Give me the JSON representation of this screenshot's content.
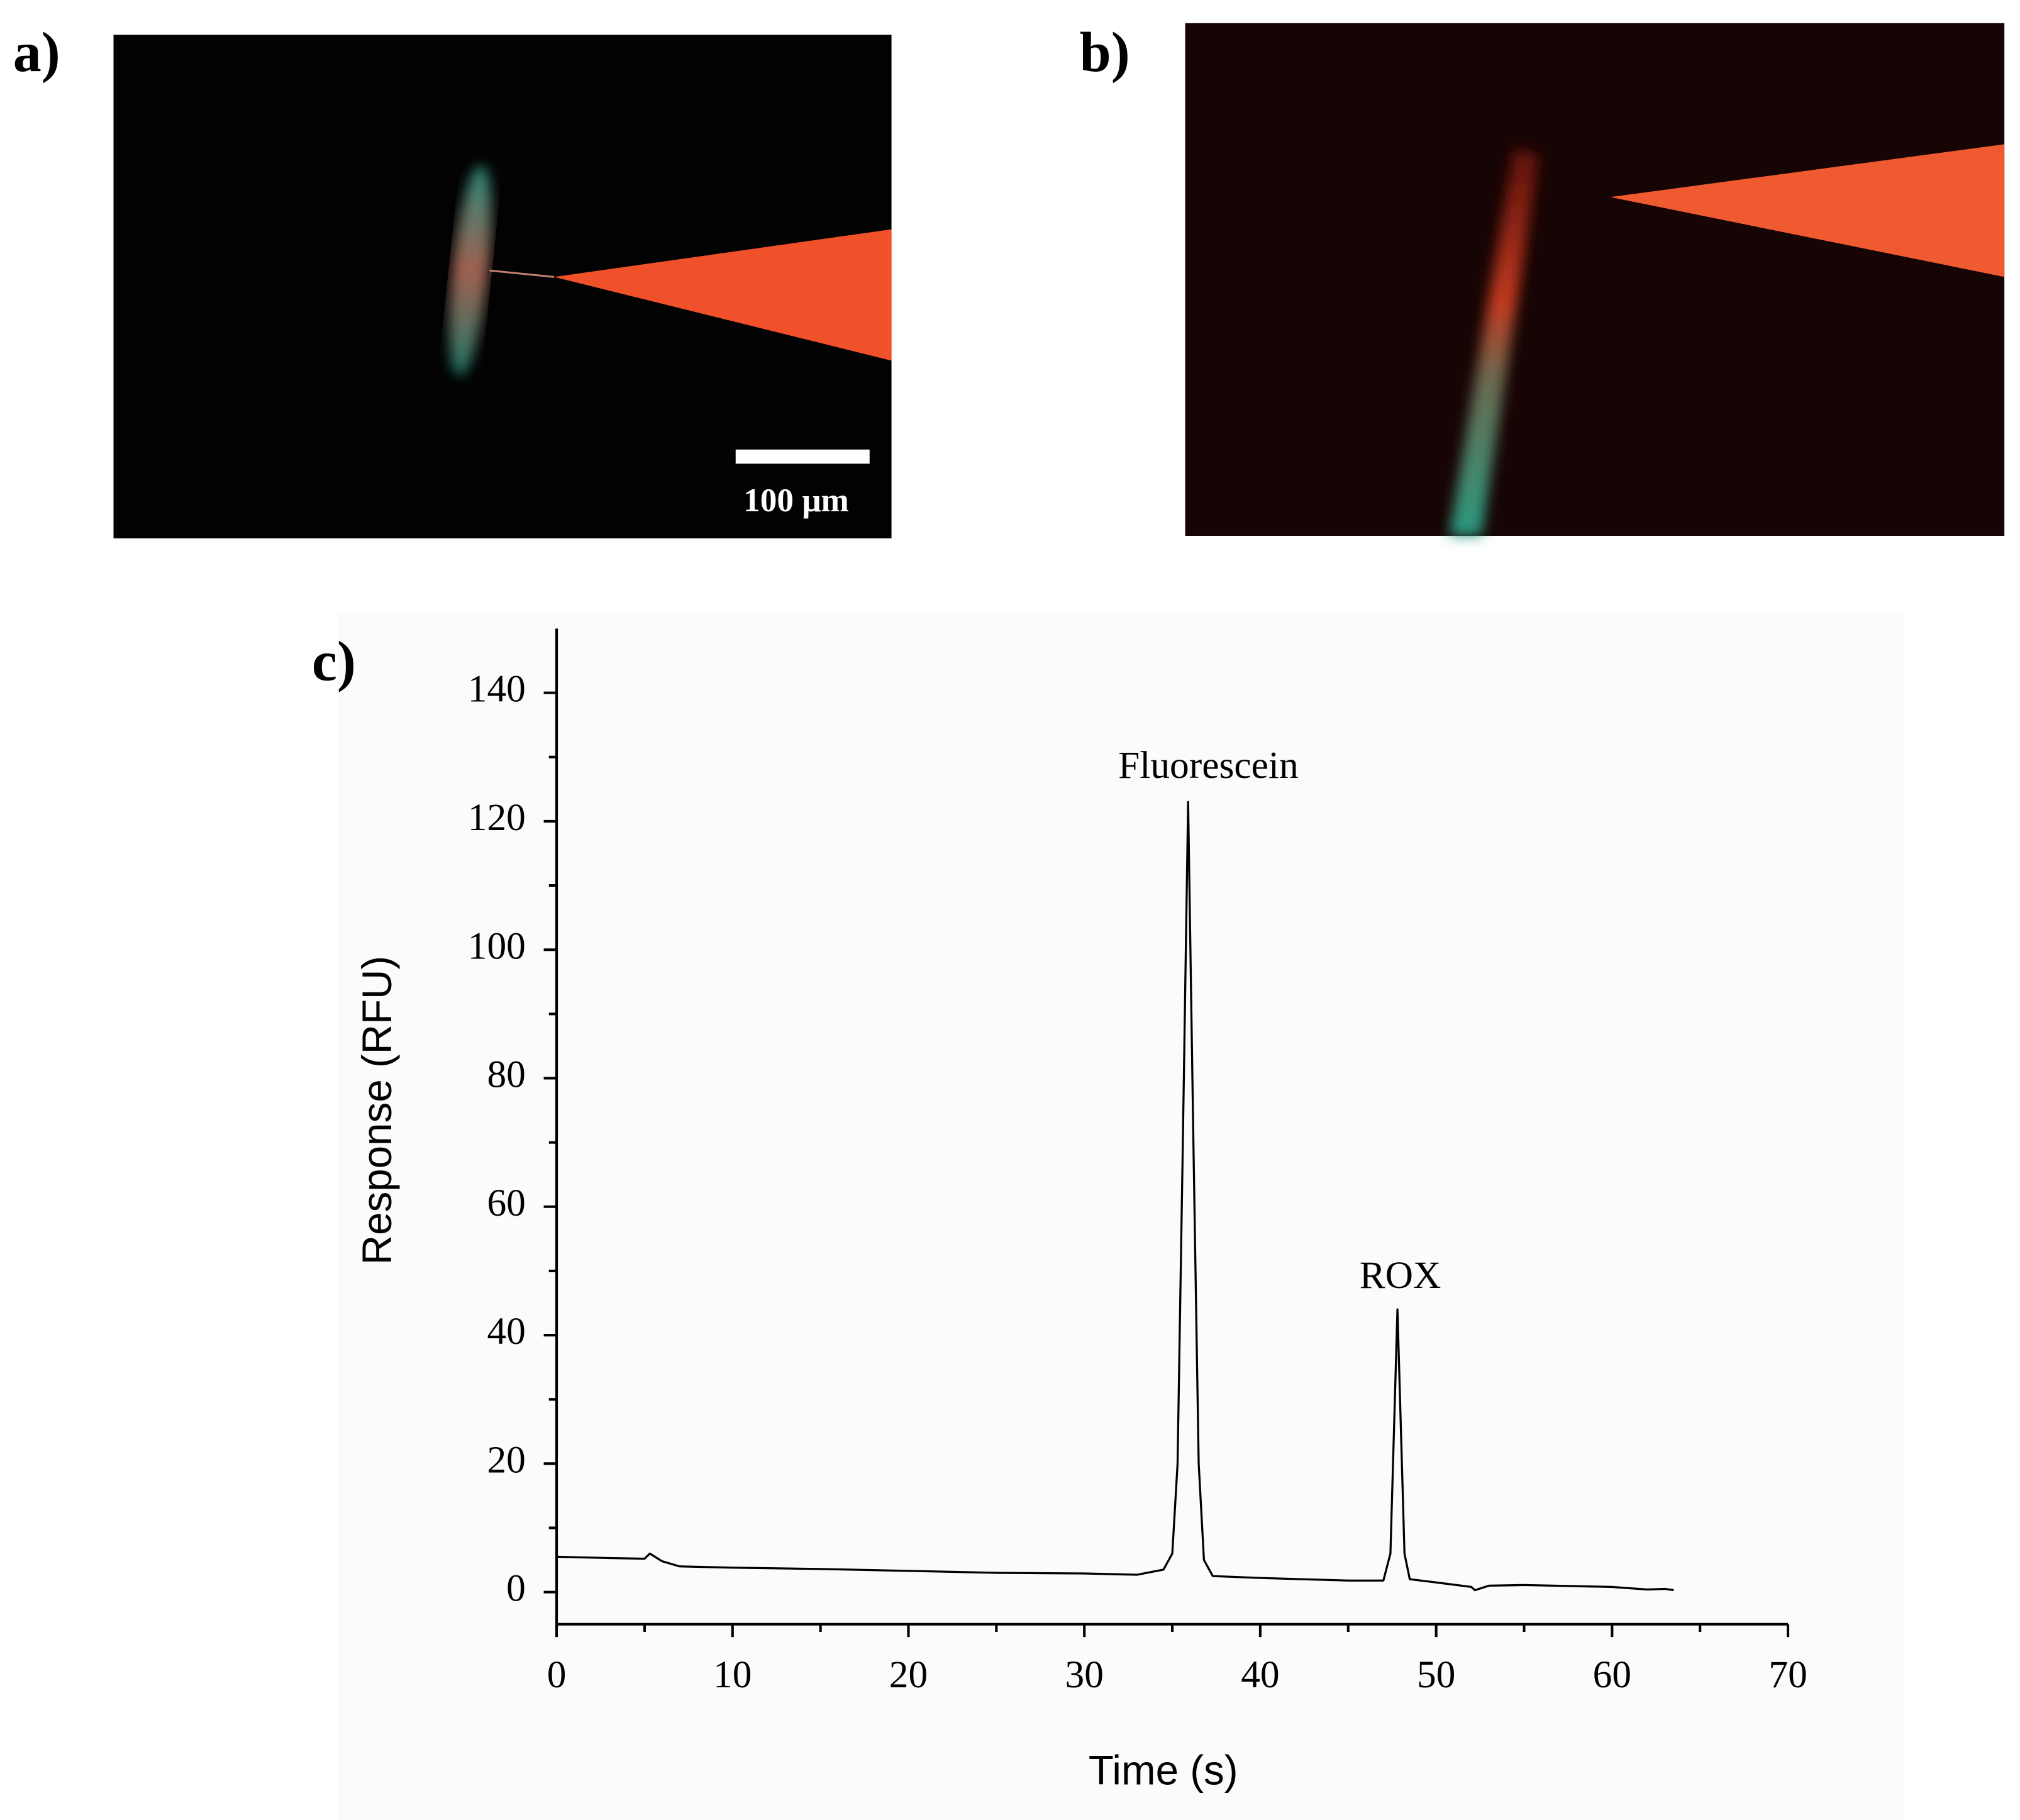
{
  "panels": {
    "a": {
      "label": "a)",
      "scale_bar": "100 μm"
    },
    "b": {
      "label": "b)"
    }
  },
  "chart_data": {
    "type": "line",
    "panel_label": "c)",
    "xlabel": "Time (s)",
    "ylabel": "Response (RFU)",
    "x": [
      0,
      3,
      5,
      5.3,
      6,
      7,
      10,
      15,
      20,
      25,
      30,
      33,
      34.5,
      35,
      35.3,
      35.6,
      35.9,
      36.2,
      36.5,
      36.8,
      37.3,
      40,
      45,
      47,
      47.4,
      47.6,
      47.8,
      48,
      48.2,
      48.5,
      50,
      52,
      52.2,
      53,
      55,
      60,
      62,
      63,
      63.5
    ],
    "values": [
      5.5,
      5.3,
      5.2,
      6,
      4.8,
      4,
      3.8,
      3.6,
      3.3,
      3,
      2.9,
      2.7,
      3.5,
      6,
      20,
      70,
      123,
      70,
      20,
      5,
      2.5,
      2.2,
      1.8,
      1.8,
      6,
      25,
      44,
      25,
      6,
      2,
      1.5,
      0.8,
      0.3,
      1,
      1.1,
      0.8,
      0.4,
      0.5,
      0.3
    ],
    "color": "#000000",
    "annotations": [
      "Fluorescein",
      "ROX"
    ],
    "xlim": [
      0,
      70
    ],
    "xticks": [
      0,
      10,
      20,
      30,
      40,
      50,
      60,
      70
    ],
    "ylim": [
      -5,
      150
    ],
    "yticks": [
      0,
      20,
      40,
      60,
      80,
      100,
      120,
      140
    ]
  }
}
